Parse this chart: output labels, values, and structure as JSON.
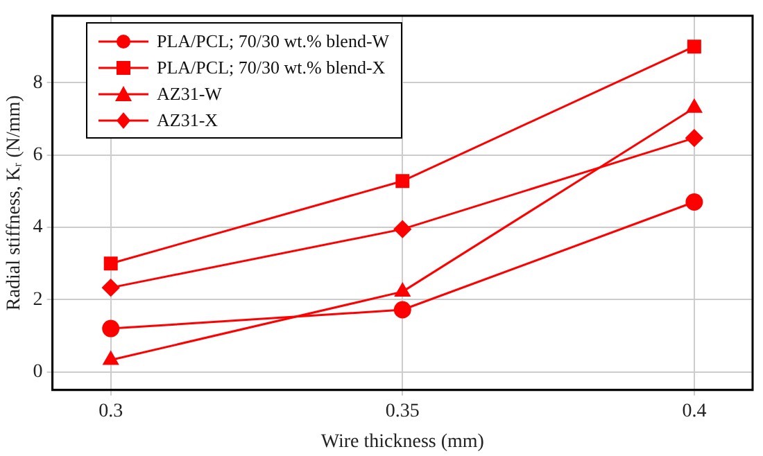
{
  "chart_data": {
    "type": "line",
    "xlabel": "Wire thickness (mm)",
    "ylabel": "Radial stiffness, Kᵣ (N/mm)",
    "x": [
      0.3,
      0.35,
      0.4
    ],
    "xlim": [
      0.29,
      0.41
    ],
    "xticks": [
      0.3,
      0.35,
      0.4
    ],
    "ylim": [
      -0.5,
      9.85
    ],
    "yticks": [
      0,
      2,
      4,
      6,
      8
    ],
    "grid": true,
    "legend": "top left",
    "line_style": "solid",
    "series": [
      {
        "name": "PLA/PCL; 70/30 wt.% blend-W",
        "color": "#ff0000",
        "marker": "circle",
        "values": [
          1.2,
          1.72,
          4.7
        ]
      },
      {
        "name": "PLA/PCL; 70/30 wt.% blend-X",
        "color": "#ff0000",
        "marker": "square",
        "values": [
          3.0,
          5.28,
          9.0
        ]
      },
      {
        "name": "AZ31-W",
        "color": "#ff0000",
        "marker": "triangle",
        "values": [
          0.33,
          2.22,
          7.3
        ]
      },
      {
        "name": "AZ31-X",
        "color": "#ff0000",
        "marker": "diamond",
        "values": [
          2.33,
          3.95,
          6.47
        ]
      }
    ]
  }
}
